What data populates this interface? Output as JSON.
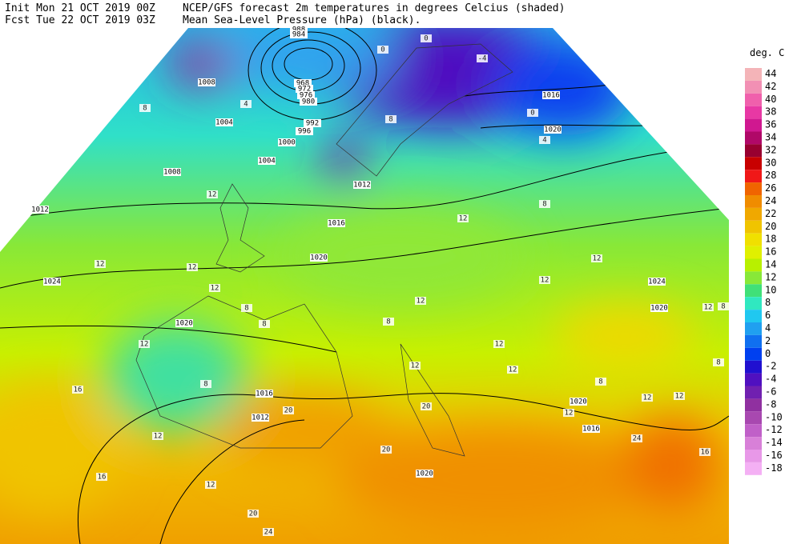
{
  "header": {
    "init": "Init  Mon 21 OCT 2019 00Z",
    "fcst": "Fcst Tue 22 OCT 2019 03Z",
    "line1": "NCEP/GFS forecast 2m temperatures in degrees Celcius (shaded)",
    "line2": "Mean Sea-Level Pressure (hPa) (black)."
  },
  "legend": {
    "title": "deg. C",
    "levels": [
      {
        "label": 44,
        "color": "#f4b4b8"
      },
      {
        "label": 42,
        "color": "#f290b4"
      },
      {
        "label": 40,
        "color": "#f060ac"
      },
      {
        "label": 38,
        "color": "#e838a4"
      },
      {
        "label": 36,
        "color": "#d01890"
      },
      {
        "label": 34,
        "color": "#b00868"
      },
      {
        "label": 32,
        "color": "#980030"
      },
      {
        "label": 30,
        "color": "#c80000"
      },
      {
        "label": 28,
        "color": "#f01818"
      },
      {
        "label": 26,
        "color": "#f06400"
      },
      {
        "label": 24,
        "color": "#f08c00"
      },
      {
        "label": 22,
        "color": "#f0a800"
      },
      {
        "label": 20,
        "color": "#f0c400"
      },
      {
        "label": 18,
        "color": "#f0e000"
      },
      {
        "label": 16,
        "color": "#e0f000"
      },
      {
        "label": 14,
        "color": "#b8f000"
      },
      {
        "label": 12,
        "color": "#88e838"
      },
      {
        "label": 10,
        "color": "#40e078"
      },
      {
        "label": 8,
        "color": "#30e8c0"
      },
      {
        "label": 6,
        "color": "#20c8f0"
      },
      {
        "label": 4,
        "color": "#20a0f0"
      },
      {
        "label": 2,
        "color": "#1070f0"
      },
      {
        "label": 0,
        "color": "#0040f0"
      },
      {
        "label": -2,
        "color": "#2010d0"
      },
      {
        "label": -4,
        "color": "#5010c0"
      },
      {
        "label": -6,
        "color": "#7020b0"
      },
      {
        "label": -8,
        "color": "#9030a0"
      },
      {
        "label": -10,
        "color": "#a848b0"
      },
      {
        "label": -12,
        "color": "#c060c8"
      },
      {
        "label": -14,
        "color": "#d880d8"
      },
      {
        "label": -16,
        "color": "#e898e8"
      },
      {
        "label": -18,
        "color": "#f4b0f4"
      }
    ]
  },
  "map": {
    "isobar_labels": [
      "988",
      "984",
      "968",
      "972",
      "976",
      "980",
      "992",
      "996",
      "1000",
      "1004",
      "1004",
      "1008",
      "1008",
      "1012",
      "1012",
      "1016",
      "1020",
      "1024",
      "1020",
      "1016",
      "1012",
      "1020",
      "1020",
      "1016",
      "1020",
      "1024",
      "1016",
      "1020"
    ],
    "temperature_labels": [
      "8",
      "4",
      "12",
      "12",
      "12",
      "12",
      "8",
      "8",
      "12",
      "16",
      "8",
      "12",
      "16",
      "12",
      "20",
      "24",
      "20",
      "12",
      "8",
      "12",
      "12",
      "12",
      "8",
      "12",
      "12",
      "12",
      "8",
      "12",
      "16",
      "12",
      "8",
      "8",
      "12",
      "24",
      "8",
      "0",
      "4",
      "-4",
      "0",
      "0",
      "20",
      "20",
      "12"
    ]
  }
}
